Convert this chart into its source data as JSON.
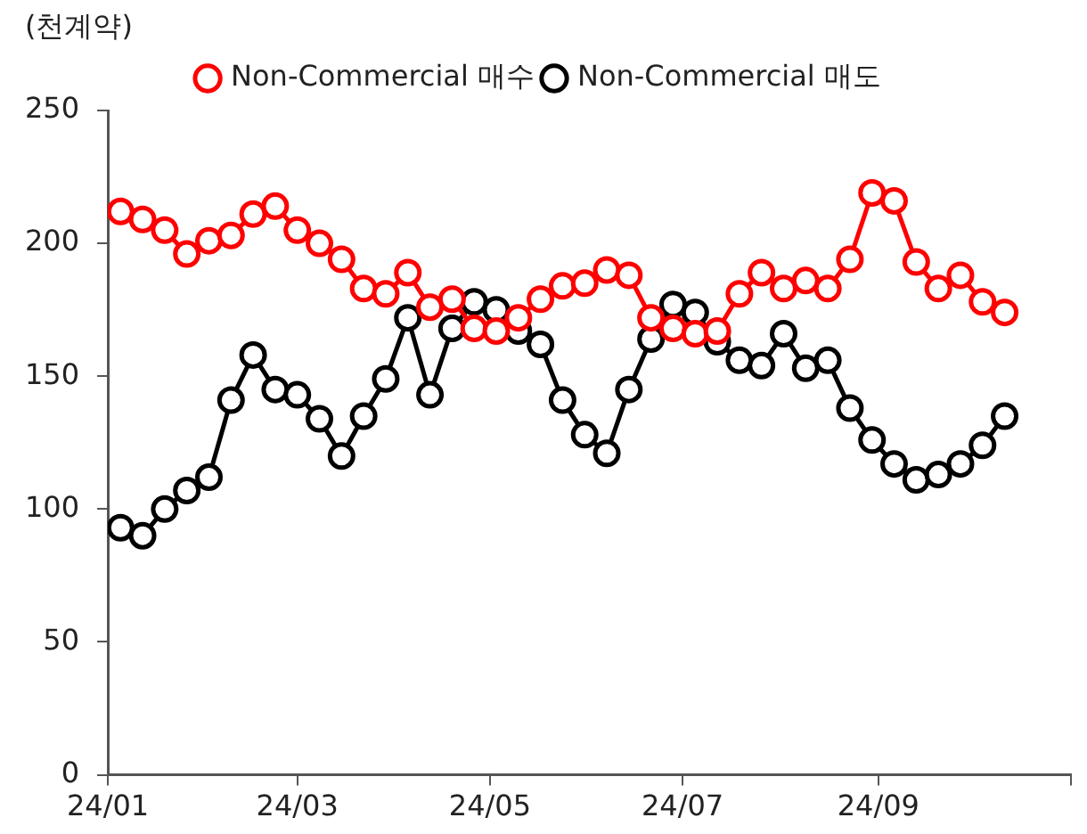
{
  "chart_data": {
    "type": "line",
    "ylabel": "(천계약)",
    "x": [
      "--01-05",
      "--01-12",
      "--01-19",
      "--01-26",
      "--02-02",
      "--02-09",
      "--02-16",
      "--02-23",
      "--03-01",
      "--03-08",
      "--03-15",
      "--03-22",
      "--03-29",
      "--04-05",
      "--04-12",
      "--04-19",
      "--04-26",
      "--05-03",
      "--05-10",
      "--05-17",
      "--05-24",
      "--05-31",
      "--06-07",
      "--06-14",
      "--06-21",
      "--06-28",
      "--07-05",
      "--07-12",
      "--07-19",
      "--07-26",
      "--08-02",
      "--08-09",
      "--08-16",
      "--08-23",
      "--08-30",
      "--09-06",
      "--09-13",
      "--09-20",
      "--09-27",
      "--10-04",
      "--10-11"
    ],
    "series": [
      {
        "name": "Non-Commercial 매수",
        "color": "#ff0000",
        "values": [
          212,
          209,
          205,
          196,
          201,
          203,
          211,
          214,
          205,
          200,
          194,
          183,
          181,
          189,
          176,
          179,
          168,
          167,
          172,
          179,
          184,
          185,
          190,
          188,
          172,
          168,
          166,
          167,
          181,
          189,
          183,
          186,
          183,
          194,
          219,
          216,
          193,
          183,
          188,
          178,
          174
        ]
      },
      {
        "name": "Non-Commercial 매도",
        "color": "#000000",
        "values": [
          93,
          90,
          100,
          107,
          112,
          141,
          158,
          145,
          143,
          134,
          120,
          135,
          149,
          172,
          143,
          168,
          178,
          175,
          167,
          162,
          141,
          128,
          121,
          145,
          164,
          177,
          174,
          163,
          156,
          154,
          166,
          153,
          156,
          138,
          126,
          117,
          111,
          113,
          117,
          124,
          135
        ]
      }
    ],
    "xlim": [
      "--01-01",
      "--11-01"
    ],
    "xticks": [
      {
        "value": "--01-01",
        "label": "24/01"
      },
      {
        "value": "--03-01",
        "label": "24/03"
      },
      {
        "value": "--05-01",
        "label": "24/05"
      },
      {
        "value": "--07-01",
        "label": "24/07"
      },
      {
        "value": "--09-01",
        "label": "24/09"
      },
      {
        "value": "--11-01",
        "label": null
      }
    ],
    "ylim": [
      0,
      250
    ],
    "yticks": [
      0,
      50,
      100,
      150,
      200,
      250
    ],
    "grid": false,
    "legend": "top",
    "marker": "circle",
    "line_style": "solid"
  }
}
